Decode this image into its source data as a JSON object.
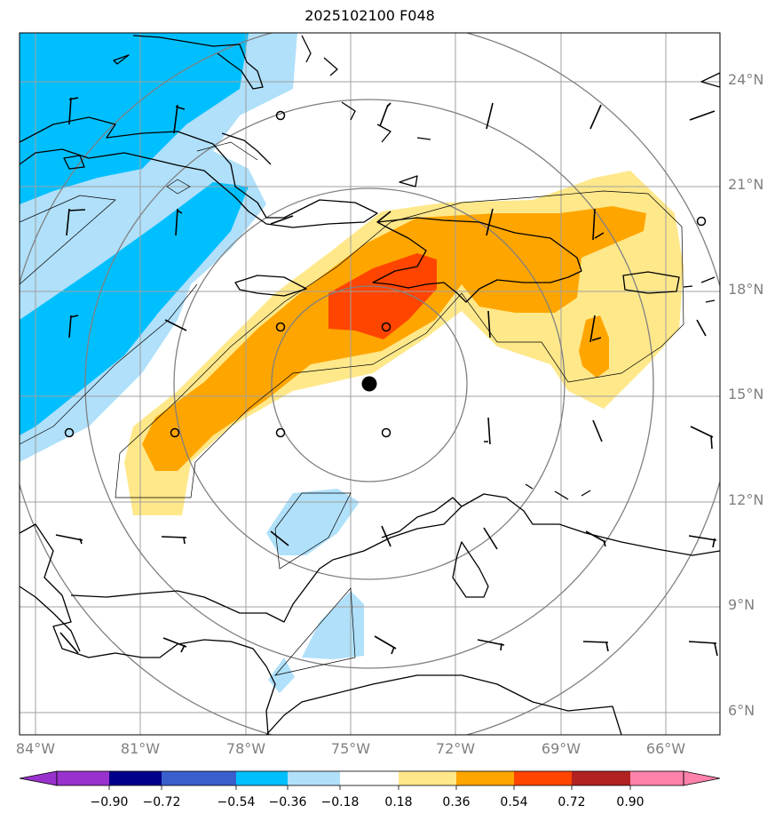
{
  "title": "2025102100 F048",
  "lat_labels": [
    "24°N",
    "21°N",
    "18°N",
    "15°N",
    "12°N",
    "9°N",
    "6°N"
  ],
  "lon_labels": [
    "84°W",
    "81°W",
    "78°W",
    "75°W",
    "72°W",
    "69°W",
    "66°W"
  ],
  "colorbar": {
    "ticks": [
      "−0.90",
      "−0.72",
      "−0.54",
      "−0.36",
      "−0.18",
      "0.18",
      "0.36",
      "0.54",
      "0.72",
      "0.90"
    ],
    "colors": [
      "#9932cc",
      "#00008b",
      "#3a5fcd",
      "#00bfff",
      "#b0e0fa",
      "#ffffff",
      "#ffe88a",
      "#ffa500",
      "#ff4500",
      "#b22222",
      "#ff82ab"
    ]
  },
  "map_colors": {
    "blue_dark": "#00bfff",
    "blue_light": "#b0e0fa",
    "yellow": "#ffe88a",
    "orange": "#ffa500",
    "red": "#ff4500",
    "grid": "#a0a0a0",
    "range_rings": "#808080"
  },
  "storm_center": {
    "lon": -74.5,
    "lat": 15.4
  }
}
